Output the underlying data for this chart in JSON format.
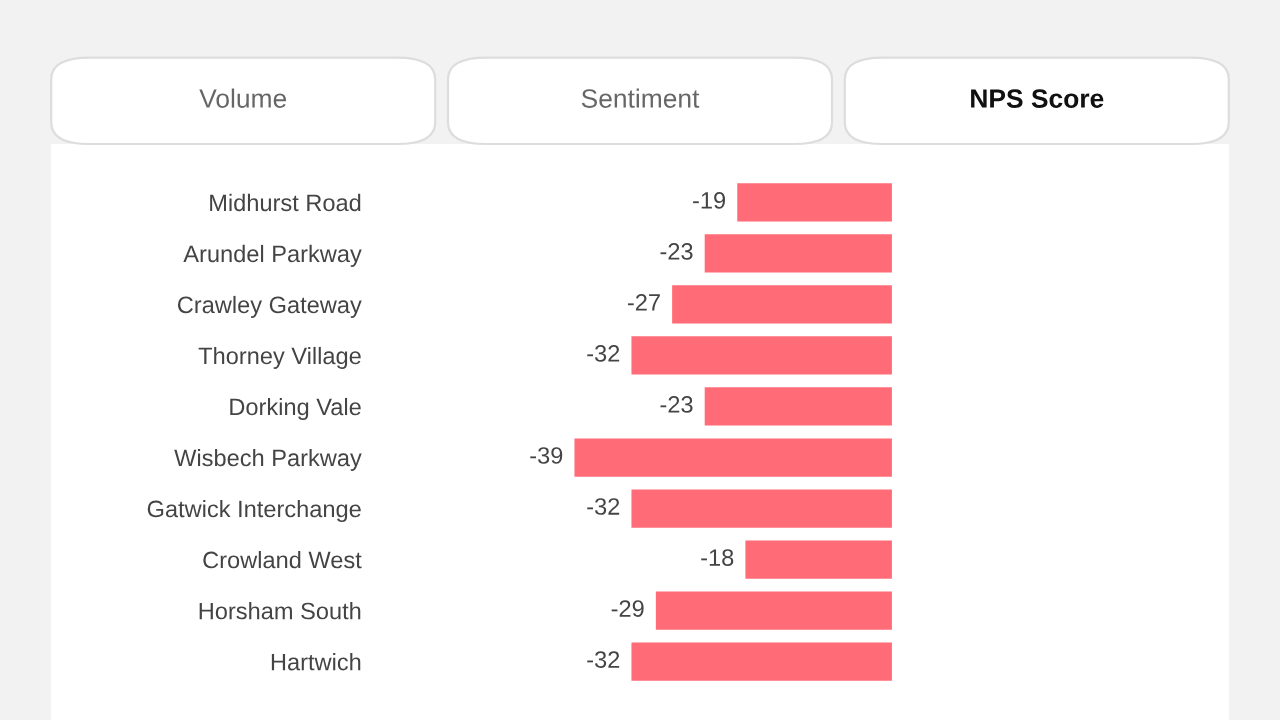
{
  "chart_data": {
    "type": "bar",
    "orientation": "horizontal",
    "annotations": [
      "Volume",
      "Sentiment",
      "NPS Score"
    ],
    "categories": [
      "Midhurst Road",
      "Arundel Parkway",
      "Crawley Gateway",
      "Thorney Village",
      "Dorking Vale",
      "Wisbech Parkway",
      "Gatwick Interchange",
      "Crowland West",
      "Horsham South",
      "Hartwich"
    ],
    "values": [
      -19,
      -23,
      -27,
      -32,
      -23,
      -39,
      -32,
      -18,
      -29,
      -32
    ],
    "color": "#ff6b77",
    "data_labels": true,
    "tick_labels": "y"
  }
}
